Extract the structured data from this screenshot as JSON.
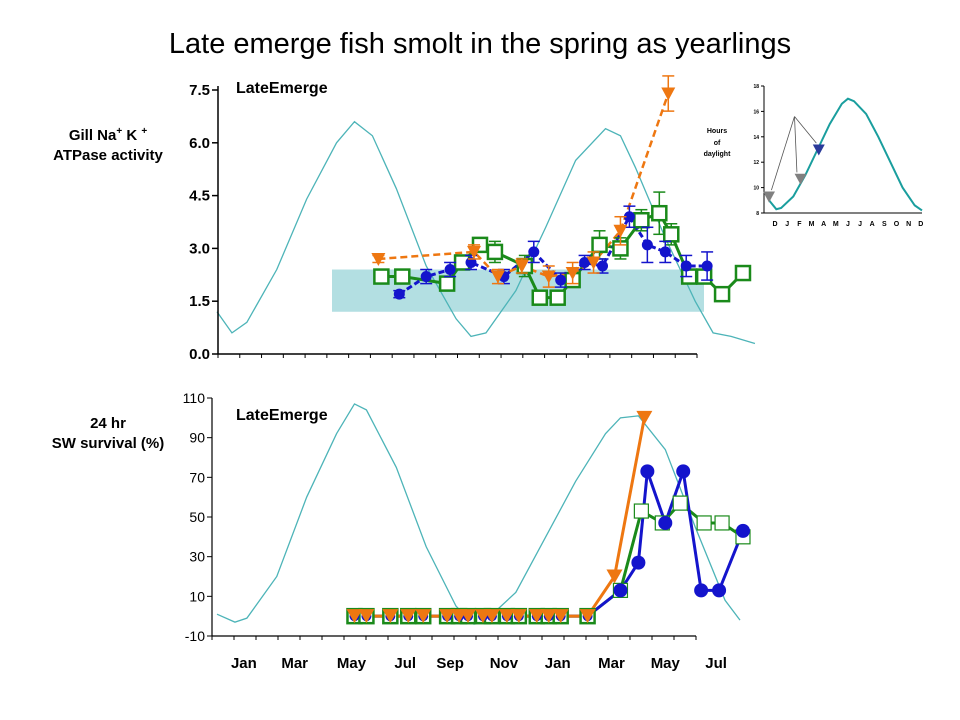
{
  "title": "Late emerge fish smolt in the spring as yearlings",
  "colors": {
    "photoperiod": "#4db4b8",
    "band": "#b3dfe2",
    "green": "#1a8a1a",
    "blue": "#1414cc",
    "orange": "#ee7711",
    "inset_curve": "#1a9e9e",
    "inset_gray": "#808080",
    "inset_blue": "#2a3a9a"
  },
  "chart_data": [
    {
      "id": "atpase",
      "type": "line",
      "panel_label": "LateEmerge",
      "ylabel_line1": "Gill Na",
      "ylabel_sup1": "+",
      "ylabel_k": " K ",
      "ylabel_sup2": "+",
      "ylabel_line2": "ATPase activity",
      "ylim": [
        0,
        7.5
      ],
      "yticks": [
        "0.0",
        "1.5",
        "3.0",
        "4.5",
        "6.0",
        "7.5"
      ],
      "xlim": [
        0,
        17.5
      ],
      "band": [
        1.2,
        2.4
      ],
      "series": [
        {
          "id": "green",
          "x": [
            5.5,
            6.2,
            7.7,
            8.2,
            8.8,
            9.3,
            10.3,
            10.8,
            11.4,
            11.9,
            12.8,
            13.5,
            14.2,
            14.8,
            15.2,
            15.8,
            16.3,
            16.9,
            17.6
          ],
          "y": [
            2.2,
            2.2,
            2.0,
            2.6,
            3.1,
            2.9,
            2.5,
            1.6,
            1.6,
            2.1,
            3.1,
            3.0,
            3.8,
            4.0,
            3.4,
            2.2,
            2.2,
            1.7,
            2.3
          ],
          "err": [
            0.1,
            0.2,
            0.2,
            0.2,
            0.2,
            0.3,
            0.3,
            0.2,
            0.2,
            0.2,
            0.4,
            0.3,
            0.3,
            0.6,
            0.3,
            0.2,
            0.2,
            0.2,
            0.2
          ]
        },
        {
          "id": "blue",
          "x": [
            6.1,
            7.0,
            7.8,
            8.5,
            9.6,
            10.6,
            11.5,
            12.3,
            12.9,
            13.8,
            14.4,
            15.0,
            15.7,
            16.4
          ],
          "y": [
            1.7,
            2.2,
            2.4,
            2.6,
            2.2,
            2.9,
            2.1,
            2.6,
            2.5,
            3.9,
            3.1,
            2.9,
            2.5,
            2.5
          ],
          "err": [
            0.1,
            0.2,
            0.2,
            0.2,
            0.2,
            0.3,
            0.2,
            0.2,
            0.2,
            0.3,
            0.5,
            0.3,
            0.3,
            0.4
          ]
        },
        {
          "id": "orange",
          "x": [
            5.4,
            8.6,
            9.4,
            10.2,
            11.1,
            11.9,
            12.6,
            13.5,
            15.1
          ],
          "y": [
            2.7,
            2.9,
            2.2,
            2.5,
            2.2,
            2.3,
            2.6,
            3.5,
            7.4
          ],
          "err": [
            0.1,
            0.2,
            0.2,
            0.2,
            0.3,
            0.3,
            0.3,
            0.4,
            0.5
          ]
        }
      ],
      "photoperiod": [
        [
          0,
          1.2
        ],
        [
          0.5,
          0.6
        ],
        [
          1,
          0.9
        ],
        [
          2,
          2.4
        ],
        [
          3,
          4.4
        ],
        [
          4,
          6.0
        ],
        [
          4.6,
          6.6
        ],
        [
          5.2,
          6.2
        ],
        [
          6,
          4.7
        ],
        [
          7,
          2.5
        ],
        [
          8,
          1.0
        ],
        [
          8.5,
          0.5
        ],
        [
          9,
          0.6
        ],
        [
          10,
          1.8
        ],
        [
          11,
          3.6
        ],
        [
          12,
          5.5
        ],
        [
          13,
          6.4
        ],
        [
          13.5,
          6.2
        ],
        [
          14,
          5.3
        ],
        [
          15,
          3.3
        ],
        [
          16,
          1.5
        ],
        [
          16.6,
          0.6
        ],
        [
          17.2,
          0.5
        ],
        [
          18,
          0.3
        ]
      ]
    },
    {
      "id": "survival",
      "type": "line",
      "panel_label": "LateEmerge",
      "ylabel_line1": "24 hr",
      "ylabel_line2": "SW survival (%)",
      "ylim": [
        -10,
        110
      ],
      "yticks": [
        "-10",
        "10",
        "30",
        "50",
        "70",
        "90",
        "110"
      ],
      "xlim": [
        0,
        17.5
      ],
      "xticks": [
        {
          "label": "Jan",
          "x": 0.9
        },
        {
          "label": "Mar",
          "x": 2.6
        },
        {
          "label": "May",
          "x": 4.5
        },
        {
          "label": "Jul",
          "x": 6.3
        },
        {
          "label": "Sep",
          "x": 7.8
        },
        {
          "label": "Nov",
          "x": 9.6
        },
        {
          "label": "Jan",
          "x": 11.4
        },
        {
          "label": "Mar",
          "x": 13.2
        },
        {
          "label": "May",
          "x": 15.0
        },
        {
          "label": "Jul",
          "x": 16.7
        }
      ],
      "series": [
        {
          "id": "green",
          "x": [
            4.6,
            5.0,
            5.8,
            6.4,
            6.9,
            7.7,
            8.1,
            8.4,
            8.9,
            9.2,
            9.7,
            10.1,
            10.7,
            11.1,
            11.5,
            12.4,
            13.5,
            14.2,
            14.9,
            15.5,
            16.3,
            16.9,
            17.6
          ],
          "y": [
            0,
            0,
            0,
            0,
            0,
            0,
            0,
            0,
            0,
            0,
            0,
            0,
            0,
            0,
            0,
            0,
            13,
            53,
            47,
            57,
            47,
            47,
            40
          ]
        },
        {
          "id": "blue",
          "x": [
            4.6,
            5.0,
            5.8,
            6.4,
            6.9,
            7.7,
            8.1,
            8.4,
            8.9,
            9.2,
            9.7,
            10.1,
            10.7,
            11.1,
            11.5,
            12.4,
            13.5,
            14.1,
            14.4,
            15.0,
            15.6,
            16.2,
            16.8,
            17.6
          ],
          "y": [
            0,
            0,
            0,
            0,
            0,
            0,
            0,
            0,
            0,
            0,
            0,
            0,
            0,
            0,
            0,
            0,
            13,
            27,
            73,
            47,
            73,
            13,
            13,
            43
          ]
        },
        {
          "id": "orange",
          "x": [
            4.6,
            5.0,
            5.8,
            6.4,
            6.9,
            7.7,
            8.1,
            8.4,
            8.9,
            9.2,
            9.7,
            10.1,
            10.7,
            11.1,
            11.5,
            12.4,
            13.3,
            14.3
          ],
          "y": [
            0,
            0,
            0,
            0,
            0,
            0,
            0,
            0,
            0,
            0,
            0,
            0,
            0,
            0,
            0,
            0,
            20,
            100
          ]
        }
      ],
      "photoperiod": [
        [
          0,
          1
        ],
        [
          0.6,
          -3
        ],
        [
          1,
          -1
        ],
        [
          2,
          20
        ],
        [
          3,
          60
        ],
        [
          4,
          92
        ],
        [
          4.6,
          107
        ],
        [
          5,
          104
        ],
        [
          6,
          75
        ],
        [
          7,
          35
        ],
        [
          8,
          5
        ],
        [
          8.6,
          -4
        ],
        [
          9,
          -2
        ],
        [
          10,
          12
        ],
        [
          11,
          40
        ],
        [
          12,
          68
        ],
        [
          13,
          92
        ],
        [
          13.5,
          100
        ],
        [
          14.1,
          101
        ],
        [
          15,
          84
        ],
        [
          16,
          45
        ],
        [
          17,
          8
        ],
        [
          17.5,
          -2
        ]
      ]
    },
    {
      "id": "inset",
      "type": "line",
      "ylabel_line1": "Hours",
      "ylabel_line2": "of",
      "ylabel_line3": "daylight",
      "ylim": [
        8,
        18
      ],
      "yticks": [
        "8",
        "10",
        "12",
        "14",
        "16",
        "18"
      ],
      "months": [
        "D",
        "J",
        "F",
        "M",
        "A",
        "M",
        "J",
        "J",
        "A",
        "S",
        "O",
        "N",
        "D"
      ],
      "curve": [
        [
          0,
          9.0
        ],
        [
          0.6,
          8.3
        ],
        [
          1,
          8.4
        ],
        [
          2,
          9.3
        ],
        [
          3,
          11.0
        ],
        [
          4,
          13.0
        ],
        [
          5,
          15.0
        ],
        [
          6,
          16.6
        ],
        [
          6.5,
          17.0
        ],
        [
          7,
          16.8
        ],
        [
          8,
          15.8
        ],
        [
          9,
          14.0
        ],
        [
          10,
          12.0
        ],
        [
          11,
          10.0
        ],
        [
          12,
          8.6
        ],
        [
          12.6,
          8.2
        ]
      ],
      "markers": [
        {
          "x": 0,
          "y": 9.3,
          "color": "inset_gray"
        },
        {
          "x": 2.6,
          "y": 10.7,
          "color": "inset_gray"
        },
        {
          "x": 4.1,
          "y": 13.0,
          "color": "inset_blue"
        }
      ],
      "arrows": [
        {
          "from": [
            2.1,
            15.6
          ],
          "to": [
            0.2,
            9.8
          ]
        },
        {
          "from": [
            2.1,
            15.6
          ],
          "to": [
            2.3,
            11.2
          ]
        },
        {
          "from": [
            2.1,
            15.6
          ],
          "to": [
            3.9,
            13.5
          ]
        }
      ]
    }
  ]
}
